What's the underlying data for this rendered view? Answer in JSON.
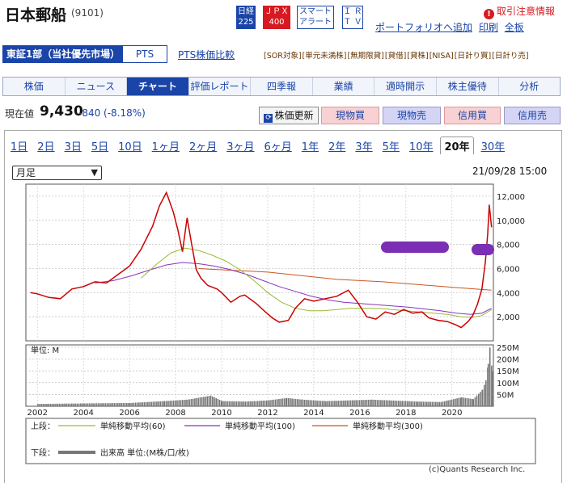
{
  "header": {
    "company": "日本郵船",
    "code": "(9101)",
    "nikkei": [
      "日経",
      "225"
    ],
    "jpx": [
      "ＪＰＸ",
      "400"
    ],
    "alert": [
      "スマート",
      "アラート"
    ],
    "ir": [
      "Ｉ Ｒ",
      "Ｔ Ｖ"
    ],
    "risk_icon": "!",
    "risk": "取引注意情報",
    "links": [
      "ポートフォリオへ追加",
      "印刷",
      "全板"
    ]
  },
  "market": {
    "primary": "東証1部（当社優先市場）",
    "secondary": "PTS",
    "pts_compare": "PTS株価比較"
  },
  "tags": [
    "[SOR対象]",
    "[単元未満株]",
    "[無期限貸]",
    "[貸借]",
    "[貸株]",
    "[NISA]",
    "[日計り買]",
    "[日計り売]"
  ],
  "tabs": [
    "株価",
    "ニュース",
    "チャート",
    "評価レポート",
    "四季報",
    "業績",
    "適時開示",
    "株主優待",
    "分析"
  ],
  "quote": {
    "label": "現在値",
    "price": "9,430",
    "change": "-840 (-8.18%)"
  },
  "actions": {
    "refresh_icon": "⟳",
    "refresh": "株価更新",
    "buy_spot": "現物買",
    "sell_spot": "現物売",
    "buy_margin": "信用買",
    "sell_margin": "信用売"
  },
  "periods": [
    "1日",
    "2日",
    "3日",
    "5日",
    "10日",
    "1ヶ月",
    "2ヶ月",
    "3ヶ月",
    "6ヶ月",
    "1年",
    "2年",
    "3年",
    "5年",
    "10年",
    "20年",
    "30年"
  ],
  "selected_period": "20年",
  "chart_select": "月足",
  "datetime": "21/09/28 15:00",
  "colors": {
    "accent": "#1a44a8",
    "price": "#cc0000",
    "ma60": "#99bb33",
    "ma100": "#8833bb",
    "ma300": "#cc5522",
    "volume": "#777777"
  },
  "chart_data": {
    "type": "line",
    "price_axis": {
      "ticks": [
        2000,
        4000,
        6000,
        8000,
        10000,
        12000
      ],
      "tick_labels": [
        "2,000",
        "4,000",
        "6,000",
        "8,000",
        "10,000",
        "12,000"
      ],
      "ylim": [
        0,
        13000
      ]
    },
    "volume_axis": {
      "ticks": [
        50,
        100,
        150,
        200,
        250
      ],
      "tick_labels": [
        "50M",
        "100M",
        "150M",
        "200M",
        "250M"
      ],
      "unit_label": "単位: M",
      "ylim": [
        0,
        260
      ]
    },
    "x_ticks": [
      "2002",
      "2004",
      "2006",
      "2008",
      "2010",
      "2012",
      "2014",
      "2016",
      "2018",
      "2020"
    ],
    "xlim": [
      2001.5,
      2021.8
    ],
    "series": [
      {
        "name": "株価",
        "points": [
          [
            2001.7,
            4000
          ],
          [
            2002,
            3900
          ],
          [
            2002.5,
            3600
          ],
          [
            2003,
            3500
          ],
          [
            2003.5,
            4300
          ],
          [
            2004,
            4500
          ],
          [
            2004.5,
            4900
          ],
          [
            2005,
            4800
          ],
          [
            2005.5,
            5500
          ],
          [
            2006,
            6200
          ],
          [
            2006.5,
            7600
          ],
          [
            2007,
            9500
          ],
          [
            2007.3,
            11200
          ],
          [
            2007.6,
            12300
          ],
          [
            2007.9,
            10700
          ],
          [
            2008.1,
            9200
          ],
          [
            2008.3,
            7400
          ],
          [
            2008.5,
            10200
          ],
          [
            2008.7,
            8000
          ],
          [
            2008.9,
            5900
          ],
          [
            2009.1,
            5200
          ],
          [
            2009.4,
            4600
          ],
          [
            2009.8,
            4300
          ],
          [
            2010,
            4000
          ],
          [
            2010.4,
            3200
          ],
          [
            2010.8,
            3700
          ],
          [
            2011,
            3800
          ],
          [
            2011.5,
            3100
          ],
          [
            2011.9,
            2400
          ],
          [
            2012.2,
            1900
          ],
          [
            2012.5,
            1550
          ],
          [
            2012.9,
            1700
          ],
          [
            2013.2,
            2700
          ],
          [
            2013.6,
            3500
          ],
          [
            2014,
            3300
          ],
          [
            2014.5,
            3500
          ],
          [
            2015,
            3700
          ],
          [
            2015.5,
            4200
          ],
          [
            2015.9,
            3200
          ],
          [
            2016.3,
            2000
          ],
          [
            2016.7,
            1800
          ],
          [
            2017.1,
            2400
          ],
          [
            2017.5,
            2200
          ],
          [
            2017.9,
            2600
          ],
          [
            2018.3,
            2300
          ],
          [
            2018.7,
            2400
          ],
          [
            2019,
            1900
          ],
          [
            2019.4,
            1700
          ],
          [
            2019.8,
            1600
          ],
          [
            2020.2,
            1300
          ],
          [
            2020.4,
            1100
          ],
          [
            2020.7,
            1600
          ],
          [
            2020.9,
            2100
          ],
          [
            2021.1,
            3000
          ],
          [
            2021.3,
            4300
          ],
          [
            2021.45,
            6500
          ],
          [
            2021.55,
            8800
          ],
          [
            2021.62,
            11300
          ],
          [
            2021.72,
            9430
          ]
        ]
      },
      {
        "name": "単純移動平均(60)",
        "points": [
          [
            2006.5,
            5200
          ],
          [
            2007.2,
            6400
          ],
          [
            2007.8,
            7300
          ],
          [
            2008.4,
            7700
          ],
          [
            2009,
            7500
          ],
          [
            2009.6,
            7100
          ],
          [
            2010.2,
            6600
          ],
          [
            2010.8,
            5900
          ],
          [
            2011.4,
            5000
          ],
          [
            2012,
            4000
          ],
          [
            2012.6,
            3200
          ],
          [
            2013.2,
            2700
          ],
          [
            2013.8,
            2500
          ],
          [
            2014.4,
            2500
          ],
          [
            2015,
            2600
          ],
          [
            2015.6,
            2700
          ],
          [
            2016.2,
            2700
          ],
          [
            2016.8,
            2700
          ],
          [
            2017.4,
            2600
          ],
          [
            2018,
            2500
          ],
          [
            2018.6,
            2400
          ],
          [
            2019.2,
            2300
          ],
          [
            2019.8,
            2200
          ],
          [
            2020.4,
            2000
          ],
          [
            2020.9,
            1950
          ],
          [
            2021.3,
            2100
          ],
          [
            2021.72,
            2600
          ]
        ]
      },
      {
        "name": "単純移動平均(100)",
        "points": [
          [
            2004.5,
            4800
          ],
          [
            2005.3,
            5000
          ],
          [
            2006.1,
            5400
          ],
          [
            2006.9,
            5900
          ],
          [
            2007.6,
            6300
          ],
          [
            2008.3,
            6500
          ],
          [
            2009,
            6400
          ],
          [
            2009.7,
            6200
          ],
          [
            2010.4,
            5900
          ],
          [
            2011.1,
            5500
          ],
          [
            2011.8,
            5000
          ],
          [
            2012.5,
            4500
          ],
          [
            2013.2,
            4100
          ],
          [
            2013.9,
            3700
          ],
          [
            2014.6,
            3400
          ],
          [
            2015.3,
            3200
          ],
          [
            2016,
            3100
          ],
          [
            2016.7,
            3000
          ],
          [
            2017.4,
            2900
          ],
          [
            2018.1,
            2800
          ],
          [
            2018.8,
            2650
          ],
          [
            2019.5,
            2500
          ],
          [
            2020.2,
            2300
          ],
          [
            2020.8,
            2200
          ],
          [
            2021.3,
            2300
          ],
          [
            2021.72,
            2700
          ]
        ]
      },
      {
        "name": "単純移動平均(300)",
        "points": [
          [
            2009,
            6000
          ],
          [
            2010,
            5900
          ],
          [
            2011,
            5800
          ],
          [
            2012,
            5700
          ],
          [
            2013,
            5500
          ],
          [
            2014,
            5300
          ],
          [
            2015,
            5100
          ],
          [
            2016,
            5000
          ],
          [
            2017,
            4900
          ],
          [
            2018,
            4750
          ],
          [
            2019,
            4600
          ],
          [
            2020,
            4450
          ],
          [
            2021,
            4300
          ],
          [
            2021.72,
            4200
          ]
        ]
      },
      {
        "name": "出来高 単位:(M株/口/枚)",
        "points": [
          [
            2002,
            10
          ],
          [
            2004,
            12
          ],
          [
            2006,
            14
          ],
          [
            2007.5,
            22
          ],
          [
            2008.5,
            28
          ],
          [
            2009.5,
            45
          ],
          [
            2010,
            22
          ],
          [
            2011,
            20
          ],
          [
            2012,
            25
          ],
          [
            2012.8,
            35
          ],
          [
            2013.5,
            28
          ],
          [
            2014.5,
            22
          ],
          [
            2015.5,
            25
          ],
          [
            2016.5,
            28
          ],
          [
            2017.5,
            24
          ],
          [
            2018.5,
            20
          ],
          [
            2019.5,
            18
          ],
          [
            2020.4,
            38
          ],
          [
            2020.9,
            30
          ],
          [
            2021.3,
            70
          ],
          [
            2021.45,
            110
          ],
          [
            2021.55,
            180
          ],
          [
            2021.62,
            248
          ],
          [
            2021.72,
            150
          ]
        ]
      }
    ],
    "legend": {
      "upper_label": "上段：",
      "lower_label": "下段：",
      "upper": [
        "単純移動平均(60)",
        "単純移動平均(100)",
        "単純移動平均(300)"
      ],
      "lower": [
        "出来高 単位:(M株/口/枚)"
      ]
    }
  },
  "footer": "(c)Quants Research Inc."
}
